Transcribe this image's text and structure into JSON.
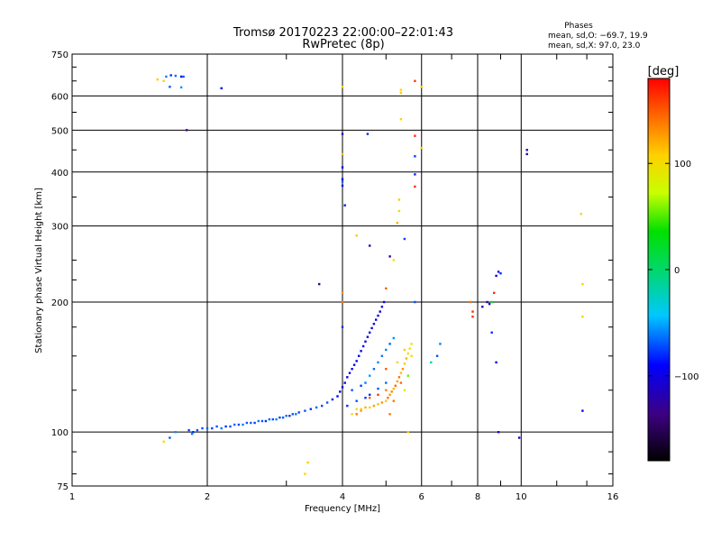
{
  "chart_data": {
    "type": "scatter",
    "title": "Tromsø 20170223 22:00:00–22:01:43",
    "subtitle": "RwPretec (8p)",
    "xlabel": "Frequency [MHz]",
    "ylabel": "Stationary phase Virtual Height [km]",
    "x_scale": "log",
    "y_scale": "log",
    "xlim": [
      1,
      16
    ],
    "ylim": [
      75,
      750
    ],
    "x_ticks": [
      1,
      2,
      4,
      6,
      8,
      10,
      16
    ],
    "y_ticks": [
      75,
      100,
      200,
      300,
      400,
      500,
      600,
      750
    ],
    "x_minor_ticks": [
      3,
      5,
      7,
      9,
      12,
      14
    ],
    "grid": true,
    "stats": {
      "title": "Phases",
      "line_o": "mean, sd,O: −69.7, 19.9",
      "line_x": "mean, sd,X:  97.0, 23.0"
    },
    "colorbar": {
      "label": "[deg]",
      "range": [
        -180,
        180
      ],
      "ticks": [
        100,
        0,
        -100
      ]
    },
    "series": [
      {
        "points": [
          [
            1.82,
            101,
            -75
          ],
          [
            1.86,
            100,
            -80
          ],
          [
            1.9,
            101,
            -70
          ],
          [
            1.95,
            102,
            -72
          ],
          [
            2.0,
            102,
            -68
          ],
          [
            2.05,
            102,
            -75
          ],
          [
            2.1,
            103,
            -70
          ],
          [
            2.15,
            102,
            -62
          ],
          [
            2.2,
            103,
            -78
          ],
          [
            2.25,
            103,
            -70
          ],
          [
            2.3,
            104,
            -65
          ],
          [
            2.35,
            104,
            -74
          ],
          [
            2.4,
            104,
            -60
          ],
          [
            2.45,
            105,
            -70
          ],
          [
            2.5,
            105,
            -68
          ],
          [
            2.55,
            105,
            -75
          ],
          [
            2.6,
            106,
            -62
          ],
          [
            2.65,
            106,
            -70
          ],
          [
            2.7,
            106,
            -80
          ],
          [
            2.75,
            107,
            -66
          ],
          [
            2.8,
            107,
            -72
          ],
          [
            2.85,
            107,
            -60
          ],
          [
            2.9,
            108,
            -74
          ],
          [
            2.95,
            108,
            -70
          ],
          [
            3.0,
            109,
            -65
          ],
          [
            3.05,
            109,
            -78
          ],
          [
            3.1,
            110,
            -70
          ],
          [
            3.15,
            110,
            -62
          ],
          [
            3.2,
            111,
            -74
          ],
          [
            3.3,
            112,
            -70
          ],
          [
            3.4,
            113,
            -80
          ],
          [
            3.5,
            114,
            -66
          ],
          [
            3.6,
            115,
            -74
          ],
          [
            3.7,
            117,
            -70
          ],
          [
            3.8,
            119,
            -85
          ],
          [
            3.9,
            121,
            -95
          ],
          [
            3.95,
            124,
            -90
          ],
          [
            4.0,
            127,
            -95
          ],
          [
            4.05,
            130,
            -98
          ],
          [
            4.1,
            134,
            -100
          ],
          [
            4.15,
            137,
            -92
          ],
          [
            4.2,
            140,
            -96
          ],
          [
            4.25,
            143,
            -100
          ],
          [
            4.3,
            146,
            -94
          ],
          [
            4.35,
            150,
            -98
          ],
          [
            4.4,
            154,
            -100
          ],
          [
            4.45,
            158,
            -92
          ],
          [
            4.5,
            162,
            -98
          ],
          [
            4.55,
            166,
            -100
          ],
          [
            4.6,
            170,
            -95
          ],
          [
            4.65,
            174,
            -100
          ],
          [
            4.7,
            178,
            -102
          ],
          [
            4.75,
            182,
            -98
          ],
          [
            4.8,
            186,
            -100
          ],
          [
            4.85,
            190,
            -96
          ],
          [
            4.9,
            195,
            -102
          ],
          [
            4.95,
            200,
            -100
          ],
          [
            4.5,
            130,
            -60
          ],
          [
            4.6,
            135,
            -55
          ],
          [
            4.7,
            140,
            -65
          ],
          [
            4.8,
            145,
            -58
          ],
          [
            4.9,
            150,
            -62
          ],
          [
            5.0,
            155,
            -60
          ],
          [
            5.1,
            160,
            -68
          ],
          [
            5.2,
            165,
            -55
          ],
          [
            4.2,
            125,
            -70
          ],
          [
            4.4,
            128,
            -75
          ],
          [
            4.6,
            122,
            -80
          ],
          [
            4.8,
            126,
            -70
          ],
          [
            5.0,
            130,
            -65
          ],
          [
            4.1,
            115,
            -80
          ],
          [
            4.3,
            118,
            -72
          ],
          [
            4.5,
            120,
            -78
          ],
          [
            4.3,
            113,
            105
          ],
          [
            4.4,
            113,
            110
          ],
          [
            4.5,
            114,
            120
          ],
          [
            4.6,
            114,
            108
          ],
          [
            4.7,
            115,
            125
          ],
          [
            4.8,
            116,
            115
          ],
          [
            4.9,
            117,
            130
          ],
          [
            5.0,
            118,
            110
          ],
          [
            5.05,
            120,
            140
          ],
          [
            5.1,
            122,
            125
          ],
          [
            5.15,
            124,
            135
          ],
          [
            5.2,
            126,
            118
          ],
          [
            5.25,
            128,
            145
          ],
          [
            5.3,
            131,
            125
          ],
          [
            5.35,
            134,
            140
          ],
          [
            5.4,
            137,
            115
          ],
          [
            5.45,
            140,
            130
          ],
          [
            5.5,
            144,
            110
          ],
          [
            5.55,
            148,
            120
          ],
          [
            5.6,
            152,
            100
          ],
          [
            5.65,
            156,
            95
          ],
          [
            5.7,
            160,
            90
          ],
          [
            4.6,
            120,
            150
          ],
          [
            4.8,
            122,
            160
          ],
          [
            5.0,
            125,
            135
          ],
          [
            5.2,
            118,
            140
          ],
          [
            5.4,
            130,
            145
          ],
          [
            5.5,
            125,
            80
          ],
          [
            5.6,
            135,
            55
          ],
          [
            5.3,
            145,
            105
          ],
          [
            5.5,
            155,
            110
          ],
          [
            5.7,
            150,
            95
          ],
          [
            4.4,
            112,
            125
          ],
          [
            4.2,
            110,
            100
          ],
          [
            5.1,
            110,
            140
          ],
          [
            1.85,
            99,
            -60
          ],
          [
            1.7,
            100,
            -55
          ],
          [
            1.65,
            97,
            -70
          ],
          [
            1.6,
            95,
            95
          ],
          [
            1.55,
            655,
            110
          ],
          [
            1.6,
            650,
            105
          ],
          [
            1.62,
            665,
            -60
          ],
          [
            1.66,
            670,
            -80
          ],
          [
            1.7,
            668,
            -65
          ],
          [
            1.75,
            665,
            -95
          ],
          [
            1.77,
            665,
            -70
          ],
          [
            1.65,
            630,
            -70
          ],
          [
            1.75,
            628,
            -55
          ],
          [
            2.15,
            625,
            -90
          ],
          [
            1.8,
            500,
            -135
          ],
          [
            4.0,
            490,
            -110
          ],
          [
            4.0,
            410,
            -90
          ],
          [
            4.0,
            385,
            -100
          ],
          [
            4.0,
            372,
            -95
          ],
          [
            4.0,
            380,
            -70
          ],
          [
            4.05,
            335,
            -85
          ],
          [
            4.0,
            200,
            140
          ],
          [
            4.0,
            175,
            -80
          ],
          [
            4.0,
            210,
            130
          ],
          [
            4.0,
            440,
            115
          ],
          [
            4.0,
            630,
            105
          ],
          [
            4.55,
            490,
            -80
          ],
          [
            4.6,
            270,
            -120
          ],
          [
            5.1,
            255,
            -130
          ],
          [
            4.3,
            285,
            110
          ],
          [
            3.55,
            220,
            -130
          ],
          [
            3.35,
            85,
            110
          ],
          [
            3.3,
            80,
            105
          ],
          [
            5.4,
            620,
            100
          ],
          [
            5.4,
            610,
            110
          ],
          [
            5.4,
            530,
            105
          ],
          [
            5.35,
            345,
            110
          ],
          [
            5.35,
            325,
            100
          ],
          [
            5.3,
            305,
            120
          ],
          [
            5.8,
            650,
            160
          ],
          [
            5.8,
            485,
            165
          ],
          [
            5.8,
            370,
            165
          ],
          [
            5.8,
            435,
            -75
          ],
          [
            5.8,
            395,
            -80
          ],
          [
            5.8,
            200,
            -70
          ],
          [
            5.5,
            280,
            -75
          ],
          [
            5.2,
            250,
            90
          ],
          [
            5.0,
            215,
            150
          ],
          [
            6.0,
            630,
            105
          ],
          [
            6.0,
            455,
            105
          ],
          [
            4.3,
            110,
            140
          ],
          [
            5.0,
            140,
            150
          ],
          [
            5.6,
            100,
            110
          ],
          [
            6.3,
            145,
            -20
          ],
          [
            6.5,
            150,
            -70
          ],
          [
            6.6,
            160,
            -60
          ],
          [
            7.7,
            200,
            140
          ],
          [
            7.8,
            190,
            165
          ],
          [
            7.8,
            185,
            165
          ],
          [
            8.2,
            195,
            -110
          ],
          [
            8.4,
            200,
            -120
          ],
          [
            8.5,
            198,
            -110
          ],
          [
            8.6,
            200,
            20
          ],
          [
            8.7,
            210,
            165
          ],
          [
            8.8,
            230,
            -110
          ],
          [
            8.9,
            235,
            -90
          ],
          [
            9.0,
            233,
            -80
          ],
          [
            8.6,
            170,
            -80
          ],
          [
            8.8,
            145,
            -90
          ],
          [
            8.9,
            100,
            -100
          ],
          [
            9.9,
            97,
            -100
          ],
          [
            10.3,
            450,
            -120
          ],
          [
            10.3,
            440,
            -115
          ],
          [
            13.6,
            320,
            105
          ],
          [
            13.7,
            220,
            105
          ],
          [
            13.7,
            185,
            105
          ],
          [
            13.7,
            112,
            -90
          ]
        ]
      }
    ]
  }
}
